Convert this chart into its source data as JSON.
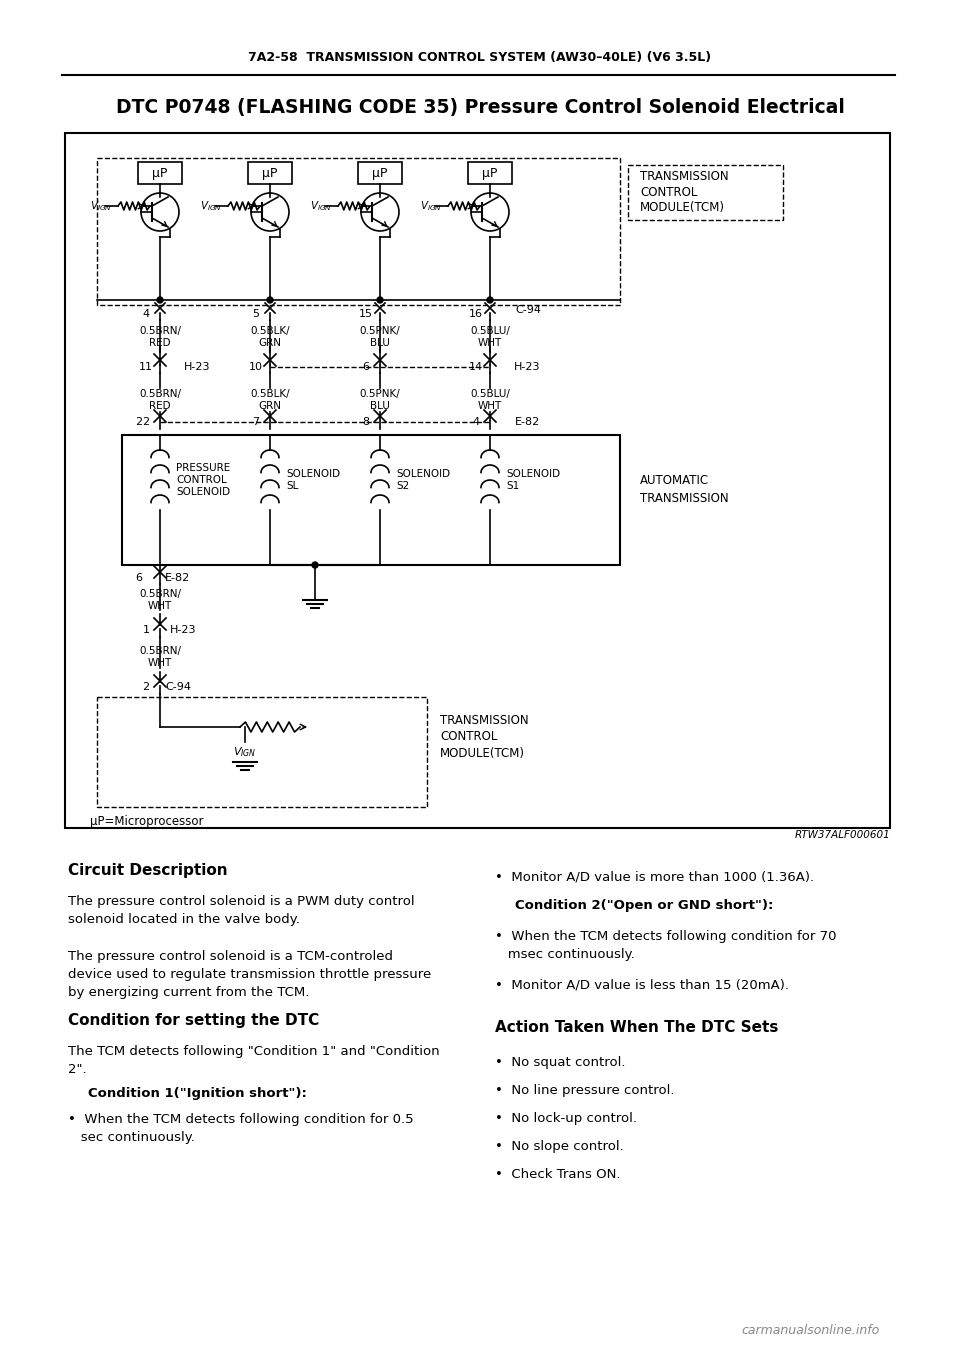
{
  "page_header": "7A2-58  TRANSMISSION CONTROL SYSTEM (AW30–40LE) (V6 3.5L)",
  "title": "DTC P0748 (FLASHING CODE 35) Pressure Control Solenoid Electrical",
  "diagram_ref": "RTW37ALF000601",
  "bg_color": "#ffffff",
  "border_color": "#000000",
  "text_color": "#000000",
  "section_left_title": "Circuit Description",
  "section_left_p1": "The pressure control solenoid is a PWM duty control\nsolenoid located in the valve body.",
  "section_left_p2": "The pressure control solenoid is a TCM-controled\ndevice used to regulate transmission throttle pressure\nby energizing current from the TCM.",
  "section_left_h2": "Condition for setting the DTC",
  "section_left_p3": "The TCM detects following \"Condition 1\" and \"Condition\n2\".",
  "section_left_h3": "Condition 1(\"Ignition short\"):",
  "section_left_b1": "When the TCM detects following condition for 0.5\nsec continuously.",
  "section_right_b1": "Monitor A/D value is more than 1000 (1.36A).",
  "section_right_h2": "Condition 2(\"Open or GND short\"):",
  "section_right_b2": "When the TCM detects following condition for 70\nmsec continuously.",
  "section_right_b3": "Monitor A/D value is less than 15 (20mA).",
  "section_right_title": "Action Taken When The DTC Sets",
  "action_bullets": [
    "No squat control.",
    "No line pressure control.",
    "No lock-up control.",
    "No slope control.",
    "Check Trans ON."
  ],
  "footer": "carmanualsonline.info"
}
